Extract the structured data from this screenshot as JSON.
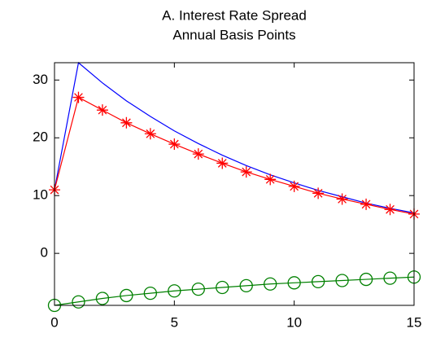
{
  "chart_data": {
    "type": "line",
    "title": [
      "A. Interest Rate Spread",
      "Annual Basis Points"
    ],
    "x": [
      0,
      1,
      2,
      3,
      4,
      5,
      6,
      7,
      8,
      9,
      10,
      11,
      12,
      13,
      14,
      15
    ],
    "series": [
      {
        "color": "#0000ff",
        "marker": "none",
        "values": [
          11,
          33,
          29.5,
          26.4,
          23.7,
          21.2,
          19.0,
          17.0,
          15.2,
          13.6,
          12.2,
          10.9,
          9.8,
          8.7,
          7.8,
          7.0
        ]
      },
      {
        "color": "#ff0000",
        "marker": "asterisk",
        "values": [
          11,
          27,
          24.8,
          22.6,
          20.7,
          18.9,
          17.2,
          15.6,
          14.1,
          12.8,
          11.6,
          10.4,
          9.4,
          8.5,
          7.6,
          6.8
        ]
      },
      {
        "color": "#008000",
        "marker": "circle",
        "values": [
          -9,
          -8.4,
          -7.8,
          -7.3,
          -6.9,
          -6.5,
          -6.2,
          -5.9,
          -5.6,
          -5.3,
          -5.1,
          -4.9,
          -4.7,
          -4.5,
          -4.3,
          -4.1
        ]
      }
    ],
    "xlim": [
      0,
      15
    ],
    "xticks": [
      0,
      5,
      10,
      15
    ],
    "ylim": [
      -9,
      33
    ],
    "yticks": [
      0,
      10,
      20,
      30
    ],
    "grid": false
  }
}
